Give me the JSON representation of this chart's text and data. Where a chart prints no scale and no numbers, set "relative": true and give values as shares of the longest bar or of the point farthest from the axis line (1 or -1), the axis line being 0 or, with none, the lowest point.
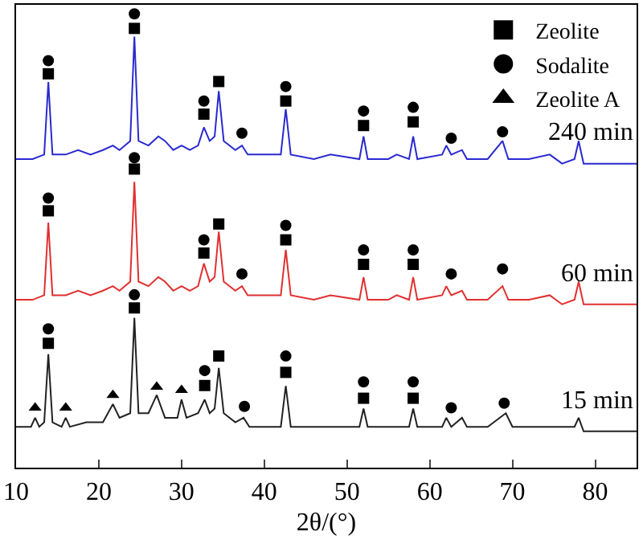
{
  "chart_data": {
    "type": "line",
    "relative": true,
    "xlabel": "2θ/(°)",
    "xlim": [
      10,
      85
    ],
    "xticks": [
      10,
      20,
      30,
      40,
      50,
      60,
      70,
      80
    ],
    "legend": "top right",
    "series": [
      {
        "name": "240 min",
        "color": "#2a2ad0",
        "x": [
          10,
          12,
          13.4,
          13.9,
          14.4,
          16,
          17.5,
          19,
          20.5,
          21.7,
          22.5,
          23.8,
          24.3,
          24.8,
          26,
          27.2,
          28,
          29,
          30,
          31,
          32,
          32.7,
          33.4,
          34,
          34.5,
          35.1,
          36.5,
          37.3,
          38,
          40,
          42,
          42.6,
          43.2,
          46,
          48,
          51.5,
          52,
          52.5,
          55,
          56,
          57.5,
          58,
          58.5,
          61.5,
          62,
          62.6,
          63.9,
          64.5,
          67,
          68.8,
          69.5,
          72,
          74.5,
          76,
          77.5,
          78,
          78.6,
          82,
          85
        ],
        "values": [
          0.68,
          0.68,
          0.69,
          0.85,
          0.69,
          0.69,
          0.7,
          0.69,
          0.7,
          0.71,
          0.7,
          0.72,
          0.95,
          0.72,
          0.71,
          0.73,
          0.72,
          0.7,
          0.71,
          0.7,
          0.71,
          0.75,
          0.72,
          0.73,
          0.83,
          0.72,
          0.7,
          0.71,
          0.69,
          0.69,
          0.69,
          0.79,
          0.69,
          0.68,
          0.69,
          0.68,
          0.73,
          0.68,
          0.68,
          0.69,
          0.68,
          0.73,
          0.68,
          0.69,
          0.71,
          0.69,
          0.7,
          0.68,
          0.68,
          0.72,
          0.68,
          0.68,
          0.69,
          0.67,
          0.68,
          0.72,
          0.67,
          0.67,
          0.67
        ]
      },
      {
        "name": "60 min",
        "color": "#e03030",
        "x": [
          10,
          12,
          13.4,
          13.9,
          14.4,
          16,
          17.5,
          19,
          20.5,
          21.7,
          22.5,
          23.8,
          24.3,
          24.8,
          26,
          27.2,
          28,
          29,
          30,
          31,
          32,
          32.7,
          33.4,
          34,
          34.5,
          35.1,
          36.5,
          37.3,
          38,
          40,
          42,
          42.6,
          43.2,
          46,
          48,
          51.5,
          52,
          52.5,
          55,
          56,
          57.5,
          58,
          58.5,
          61.5,
          62,
          62.6,
          63.9,
          64.5,
          67,
          68.8,
          69.5,
          72,
          74.5,
          76,
          77.5,
          78,
          78.6,
          82,
          85
        ],
        "values": [
          0.37,
          0.37,
          0.38,
          0.54,
          0.38,
          0.38,
          0.39,
          0.38,
          0.39,
          0.4,
          0.39,
          0.41,
          0.63,
          0.41,
          0.4,
          0.42,
          0.41,
          0.39,
          0.4,
          0.39,
          0.4,
          0.45,
          0.41,
          0.42,
          0.52,
          0.41,
          0.39,
          0.4,
          0.38,
          0.38,
          0.38,
          0.48,
          0.38,
          0.37,
          0.38,
          0.37,
          0.42,
          0.37,
          0.37,
          0.38,
          0.37,
          0.42,
          0.37,
          0.38,
          0.4,
          0.38,
          0.39,
          0.37,
          0.37,
          0.4,
          0.37,
          0.37,
          0.38,
          0.36,
          0.37,
          0.41,
          0.36,
          0.36,
          0.36
        ]
      },
      {
        "name": "15 min",
        "color": "#222222",
        "x": [
          10,
          11.8,
          12.3,
          12.8,
          13.4,
          13.9,
          14.4,
          15.5,
          16,
          16.5,
          18.5,
          20.5,
          21.7,
          22.5,
          23.8,
          24.3,
          24.8,
          26,
          27,
          28,
          29.5,
          30,
          30.6,
          32,
          32.8,
          33.4,
          34,
          34.5,
          35.1,
          36.5,
          37.5,
          38.2,
          40,
          42,
          42.6,
          43.2,
          46,
          48,
          51.5,
          52,
          52.5,
          55,
          57.5,
          58,
          58.5,
          61.5,
          62,
          62.6,
          63.9,
          64.5,
          67,
          69.2,
          70,
          72,
          74.5,
          77.5,
          78,
          78.6,
          82,
          85
        ],
        "values": [
          0.09,
          0.09,
          0.11,
          0.09,
          0.1,
          0.25,
          0.1,
          0.09,
          0.11,
          0.09,
          0.1,
          0.1,
          0.14,
          0.11,
          0.12,
          0.33,
          0.12,
          0.12,
          0.16,
          0.11,
          0.11,
          0.15,
          0.11,
          0.12,
          0.15,
          0.12,
          0.13,
          0.22,
          0.12,
          0.1,
          0.11,
          0.09,
          0.09,
          0.09,
          0.18,
          0.09,
          0.09,
          0.09,
          0.09,
          0.13,
          0.09,
          0.09,
          0.09,
          0.13,
          0.09,
          0.09,
          0.11,
          0.09,
          0.11,
          0.09,
          0.09,
          0.12,
          0.09,
          0.09,
          0.09,
          0.09,
          0.11,
          0.08,
          0.08,
          0.08
        ]
      },
      {
        "name": "Zeolite",
        "type": "scatter",
        "marker": "square",
        "color": "#000000",
        "x": [
          13.9,
          24.3,
          32.7,
          34.5,
          42.6,
          52,
          58,
          13.9,
          24.3,
          32.7,
          34.5,
          42.6,
          52,
          58,
          13.9,
          24.3,
          32.8,
          34.5,
          42.6,
          52,
          58
        ],
        "values": [
          0.868,
          0.968,
          0.779,
          0.851,
          0.808,
          0.754,
          0.762,
          0.566,
          0.658,
          0.473,
          0.537,
          0.502,
          0.448,
          0.448,
          0.274,
          0.352,
          0.181,
          0.246,
          0.21,
          0.153,
          0.153
        ]
      },
      {
        "name": "Sodalite",
        "type": "scatter",
        "marker": "circle",
        "color": "#000000",
        "x": [
          13.9,
          24.3,
          32.7,
          37.3,
          42.6,
          52,
          58,
          62.6,
          68.8,
          13.9,
          24.3,
          32.7,
          37.3,
          42.6,
          52,
          58,
          62.6,
          68.8,
          13.9,
          24.3,
          32.8,
          37.6,
          42.6,
          52,
          58,
          62.6,
          69
        ],
        "values": [
          0.897,
          1.0,
          0.808,
          0.737,
          0.84,
          0.786,
          0.794,
          0.726,
          0.74,
          0.594,
          0.683,
          0.502,
          0.427,
          0.534,
          0.48,
          0.48,
          0.427,
          0.438,
          0.306,
          0.381,
          0.214,
          0.135,
          0.246,
          0.189,
          0.189,
          0.132,
          0.142
        ]
      },
      {
        "name": "Zeolite A",
        "type": "scatter",
        "marker": "triangle",
        "color": "#000000",
        "x": [
          12.3,
          16,
          21.7,
          27,
          30
        ],
        "values": [
          0.132,
          0.132,
          0.16,
          0.178,
          0.171
        ]
      }
    ]
  }
}
